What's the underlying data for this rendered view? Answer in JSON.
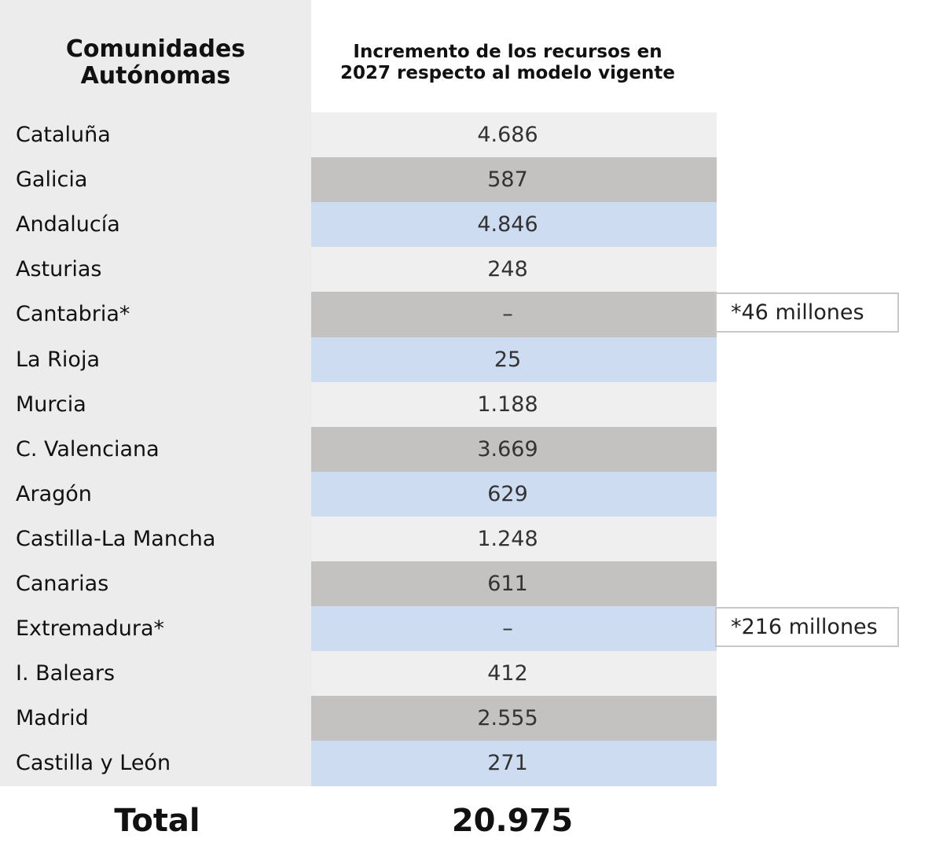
{
  "header": {
    "col1": "Comunidades\nAutónomas",
    "col2": "Incremento de los recursos en\n2027 respecto al modelo vigente"
  },
  "rows": [
    {
      "name": "Cataluña",
      "value": "4.686"
    },
    {
      "name": "Galicia",
      "value": "587"
    },
    {
      "name": "Andalucía",
      "value": "4.846"
    },
    {
      "name": "Asturias",
      "value": "248"
    },
    {
      "name": "Cantabria*",
      "value": "–",
      "note": "*46 millones"
    },
    {
      "name": "La Rioja",
      "value": "25"
    },
    {
      "name": "Murcia",
      "value": "1.188"
    },
    {
      "name": "C. Valenciana",
      "value": "3.669"
    },
    {
      "name": "Aragón",
      "value": "629"
    },
    {
      "name": "Castilla-La Mancha",
      "value": "1.248"
    },
    {
      "name": "Canarias",
      "value": "611"
    },
    {
      "name": "Extremadura*",
      "value": "–",
      "note": "*216 millones"
    },
    {
      "name": "I. Balears",
      "value": "412"
    },
    {
      "name": "Madrid",
      "value": "2.555"
    },
    {
      "name": "Castilla y León",
      "value": "271"
    }
  ],
  "total": {
    "label": "Total",
    "value": "20.975"
  }
}
